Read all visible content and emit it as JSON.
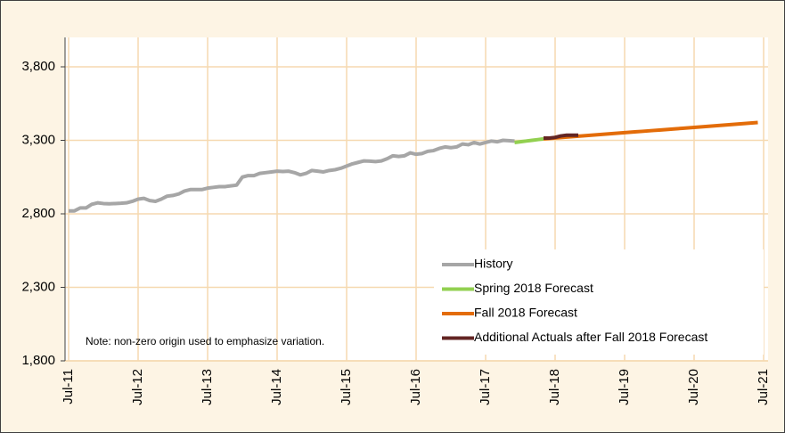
{
  "chart_data": {
    "type": "line",
    "note": "Note: non-zero origin used to emphasize variation.",
    "x": [
      "Jul-11",
      "Aug-11",
      "Sep-11",
      "Oct-11",
      "Nov-11",
      "Dec-11",
      "Jan-12",
      "Feb-12",
      "Mar-12",
      "Apr-12",
      "May-12",
      "Jun-12",
      "Jul-12",
      "Aug-12",
      "Sep-12",
      "Oct-12",
      "Nov-12",
      "Dec-12",
      "Jan-13",
      "Feb-13",
      "Mar-13",
      "Apr-13",
      "May-13",
      "Jun-13",
      "Jul-13",
      "Aug-13",
      "Sep-13",
      "Oct-13",
      "Nov-13",
      "Dec-13",
      "Jan-14",
      "Feb-14",
      "Mar-14",
      "Apr-14",
      "May-14",
      "Jun-14",
      "Jul-14",
      "Aug-14",
      "Sep-14",
      "Oct-14",
      "Nov-14",
      "Dec-14",
      "Jan-15",
      "Feb-15",
      "Mar-15",
      "Apr-15",
      "May-15",
      "Jun-15",
      "Jul-15",
      "Aug-15",
      "Sep-15",
      "Oct-15",
      "Nov-15",
      "Dec-15",
      "Jan-16",
      "Feb-16",
      "Mar-16",
      "Apr-16",
      "May-16",
      "Jun-16",
      "Jul-16",
      "Aug-16",
      "Sep-16",
      "Oct-16",
      "Nov-16",
      "Dec-16",
      "Jan-17",
      "Feb-17",
      "Mar-17",
      "Apr-17",
      "May-17",
      "Jun-17",
      "Jul-17",
      "Aug-17",
      "Sep-17",
      "Oct-17",
      "Nov-17",
      "Dec-17",
      "Jan-18",
      "Feb-18",
      "Mar-18",
      "Apr-18",
      "May-18",
      "Jun-18",
      "Jul-18",
      "Aug-18",
      "Sep-18",
      "Oct-18",
      "Nov-18",
      "Dec-18",
      "Jan-19",
      "Feb-19",
      "Mar-19",
      "Apr-19",
      "May-19",
      "Jun-19",
      "Jul-19",
      "Aug-19",
      "Sep-19",
      "Oct-19",
      "Nov-19",
      "Dec-19",
      "Jan-20",
      "Feb-20",
      "Mar-20",
      "Apr-20",
      "May-20",
      "Jun-20",
      "Jul-20",
      "Aug-20",
      "Sep-20",
      "Oct-20",
      "Nov-20",
      "Dec-20",
      "Jan-21",
      "Feb-21",
      "Mar-21",
      "Apr-21",
      "May-21",
      "Jun-21",
      "Jul-21"
    ],
    "xticks": [
      "Jul-11",
      "Jul-12",
      "Jul-13",
      "Jul-14",
      "Jul-15",
      "Jul-16",
      "Jul-17",
      "Jul-18",
      "Jul-19",
      "Jul-20",
      "Jul-21"
    ],
    "ylim": [
      1800,
      4000
    ],
    "yticks": [
      {
        "value": 1800,
        "label": "1,800"
      },
      {
        "value": 2300,
        "label": "2,300"
      },
      {
        "value": 2800,
        "label": "2,800"
      },
      {
        "value": 3300,
        "label": "3,300"
      },
      {
        "value": 3800,
        "label": "3,800"
      }
    ],
    "grid": true,
    "legend": "lower right",
    "series": [
      {
        "name": "History",
        "color": "#a6a6a6",
        "values": [
          2820,
          2820,
          2840,
          2840,
          2865,
          2875,
          2870,
          2868,
          2870,
          2872,
          2875,
          2885,
          2900,
          2905,
          2890,
          2885,
          2900,
          2920,
          2925,
          2935,
          2955,
          2965,
          2965,
          2965,
          2975,
          2980,
          2985,
          2985,
          2990,
          2995,
          3050,
          3060,
          3060,
          3075,
          3080,
          3085,
          3090,
          3088,
          3090,
          3080,
          3065,
          3075,
          3095,
          3090,
          3085,
          3095,
          3100,
          3110,
          3125,
          3140,
          3150,
          3160,
          3158,
          3155,
          3160,
          3175,
          3195,
          3190,
          3195,
          3215,
          3205,
          3210,
          3225,
          3230,
          3245,
          3255,
          3250,
          3255,
          3275,
          3270,
          3285,
          3275,
          3285,
          3295,
          3290,
          3300,
          3298,
          3295,
          null,
          null,
          null,
          null,
          null,
          null,
          null,
          null,
          null,
          null,
          null,
          null,
          null,
          null,
          null,
          null,
          null,
          null,
          null,
          null,
          null,
          null,
          null,
          null,
          null,
          null,
          null,
          null,
          null,
          null,
          null,
          null,
          null,
          null,
          null,
          null,
          null,
          null,
          null,
          null,
          null,
          null,
          null
        ]
      },
      {
        "name": "Spring 2018 Forecast",
        "color": "#92d050",
        "values": [
          null,
          null,
          null,
          null,
          null,
          null,
          null,
          null,
          null,
          null,
          null,
          null,
          null,
          null,
          null,
          null,
          null,
          null,
          null,
          null,
          null,
          null,
          null,
          null,
          null,
          null,
          null,
          null,
          null,
          null,
          null,
          null,
          null,
          null,
          null,
          null,
          null,
          null,
          null,
          null,
          null,
          null,
          null,
          null,
          null,
          null,
          null,
          null,
          null,
          null,
          null,
          null,
          null,
          null,
          null,
          null,
          null,
          null,
          null,
          null,
          null,
          null,
          null,
          null,
          null,
          null,
          null,
          null,
          null,
          null,
          null,
          null,
          null,
          null,
          null,
          null,
          null,
          3285,
          3290,
          3295,
          3300,
          3305,
          3310,
          null,
          null,
          null,
          null,
          null,
          null,
          null,
          null,
          null,
          null,
          null,
          null,
          null,
          null,
          null,
          null,
          null,
          null,
          null,
          null,
          null,
          null,
          null,
          null,
          null,
          null,
          null,
          null,
          null,
          null,
          null,
          null,
          null,
          null,
          null,
          null,
          null,
          null
        ]
      },
      {
        "name": "Fall 2018 Forecast",
        "color": "#e36c09",
        "values": [
          null,
          null,
          null,
          null,
          null,
          null,
          null,
          null,
          null,
          null,
          null,
          null,
          null,
          null,
          null,
          null,
          null,
          null,
          null,
          null,
          null,
          null,
          null,
          null,
          null,
          null,
          null,
          null,
          null,
          null,
          null,
          null,
          null,
          null,
          null,
          null,
          null,
          null,
          null,
          null,
          null,
          null,
          null,
          null,
          null,
          null,
          null,
          null,
          null,
          null,
          null,
          null,
          null,
          null,
          null,
          null,
          null,
          null,
          null,
          null,
          null,
          null,
          null,
          null,
          null,
          null,
          null,
          null,
          null,
          null,
          null,
          null,
          null,
          null,
          null,
          null,
          null,
          null,
          null,
          null,
          null,
          null,
          3310,
          3313,
          3316,
          3319,
          3322,
          3325,
          3328,
          3331,
          3334,
          3337,
          3340,
          3343,
          3346,
          3349,
          3352,
          3355,
          3358,
          3361,
          3364,
          3367,
          3370,
          3373,
          3376,
          3379,
          3382,
          3385,
          3388,
          3391,
          3394,
          3397,
          3400,
          3403,
          3406,
          3409,
          3412,
          3415,
          3418,
          3421,
          null
        ]
      },
      {
        "name": "Additional Actuals after Fall 2018 Forecast",
        "color": "#632523",
        "values": [
          null,
          null,
          null,
          null,
          null,
          null,
          null,
          null,
          null,
          null,
          null,
          null,
          null,
          null,
          null,
          null,
          null,
          null,
          null,
          null,
          null,
          null,
          null,
          null,
          null,
          null,
          null,
          null,
          null,
          null,
          null,
          null,
          null,
          null,
          null,
          null,
          null,
          null,
          null,
          null,
          null,
          null,
          null,
          null,
          null,
          null,
          null,
          null,
          null,
          null,
          null,
          null,
          null,
          null,
          null,
          null,
          null,
          null,
          null,
          null,
          null,
          null,
          null,
          null,
          null,
          null,
          null,
          null,
          null,
          null,
          null,
          null,
          null,
          null,
          null,
          null,
          null,
          null,
          null,
          null,
          null,
          null,
          3315,
          3315,
          3320,
          3330,
          3335,
          3335,
          3335,
          null,
          null,
          null,
          null,
          null,
          null,
          null,
          null,
          null,
          null,
          null,
          null,
          null,
          null,
          null,
          null,
          null,
          null,
          null,
          null,
          null,
          null,
          null,
          null,
          null,
          null,
          null,
          null,
          null,
          null,
          null,
          null
        ]
      }
    ]
  }
}
